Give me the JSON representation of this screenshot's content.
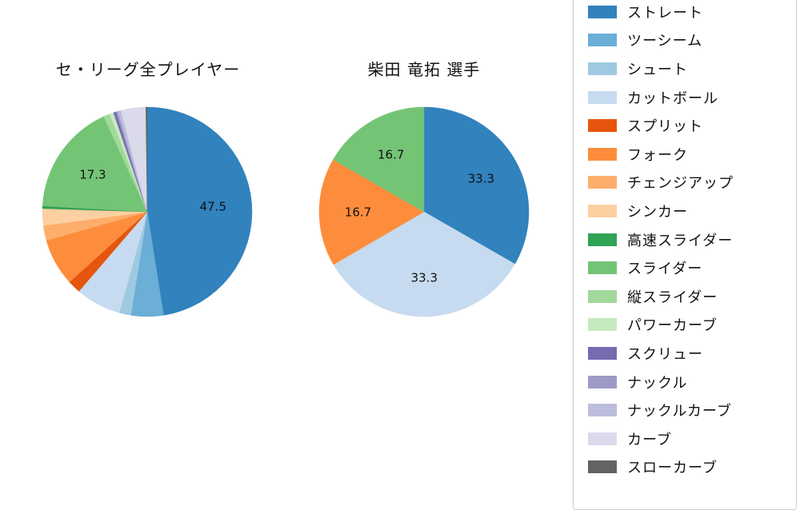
{
  "page": {
    "background": "#ffffff",
    "text_color": "#111111",
    "legend_border_color": "#cccccc"
  },
  "chart_data": [
    {
      "type": "pie",
      "title": "セ・リーグ全プレイヤー",
      "start_angle_deg": 0,
      "direction": "clockwise",
      "label_min_pct": 10,
      "labels": [
        "ストレート",
        "ツーシーム",
        "シュート",
        "カットボール",
        "スプリット",
        "フォーク",
        "チェンジアップ",
        "シンカー",
        "高速スライダー",
        "スライダー",
        "縦スライダー",
        "パワーカーブ",
        "スクリュー",
        "ナックル",
        "ナックルカーブ",
        "カーブ",
        "スローカーブ"
      ],
      "values": [
        47.5,
        5.0,
        1.8,
        7.0,
        2.0,
        7.3,
        2.3,
        2.6,
        0.4,
        17.3,
        1.0,
        0.6,
        0.4,
        0.3,
        0.5,
        3.8,
        0.2
      ],
      "colors": [
        "#3182bd",
        "#6baed6",
        "#9ecae1",
        "#c6dbef",
        "#e6550d",
        "#fd8d3c",
        "#fdae6b",
        "#fdd0a2",
        "#31a354",
        "#74c476",
        "#a1d99b",
        "#c7e9c0",
        "#756bb1",
        "#9e9ac8",
        "#bcbddc",
        "#dadaeb",
        "#636363"
      ],
      "visible_value_labels": [
        "47.5",
        "17.3"
      ]
    },
    {
      "type": "pie",
      "title": "柴田 竜拓 選手",
      "start_angle_deg": 0,
      "direction": "clockwise",
      "label_min_pct": 10,
      "labels": [
        "ストレート",
        "カットボール",
        "フォーク",
        "スライダー"
      ],
      "values": [
        33.3,
        33.3,
        16.7,
        16.7
      ],
      "colors": [
        "#3182bd",
        "#c6dbef",
        "#fd8d3c",
        "#74c476"
      ],
      "visible_value_labels": [
        "33.3",
        "33.3",
        "16.7",
        "16.7"
      ]
    }
  ],
  "legend": {
    "position": "right",
    "items": [
      {
        "label": "ストレート",
        "color": "#3182bd"
      },
      {
        "label": "ツーシーム",
        "color": "#6baed6"
      },
      {
        "label": "シュート",
        "color": "#9ecae1"
      },
      {
        "label": "カットボール",
        "color": "#c6dbef"
      },
      {
        "label": "スプリット",
        "color": "#e6550d"
      },
      {
        "label": "フォーク",
        "color": "#fd8d3c"
      },
      {
        "label": "チェンジアップ",
        "color": "#fdae6b"
      },
      {
        "label": "シンカー",
        "color": "#fdd0a2"
      },
      {
        "label": "高速スライダー",
        "color": "#31a354"
      },
      {
        "label": "スライダー",
        "color": "#74c476"
      },
      {
        "label": "縦スライダー",
        "color": "#a1d99b"
      },
      {
        "label": "パワーカーブ",
        "color": "#c7e9c0"
      },
      {
        "label": "スクリュー",
        "color": "#756bb1"
      },
      {
        "label": "ナックル",
        "color": "#9e9ac8"
      },
      {
        "label": "ナックルカーブ",
        "color": "#bcbddc"
      },
      {
        "label": "カーブ",
        "color": "#dadaeb"
      },
      {
        "label": "スローカーブ",
        "color": "#636363"
      }
    ]
  }
}
